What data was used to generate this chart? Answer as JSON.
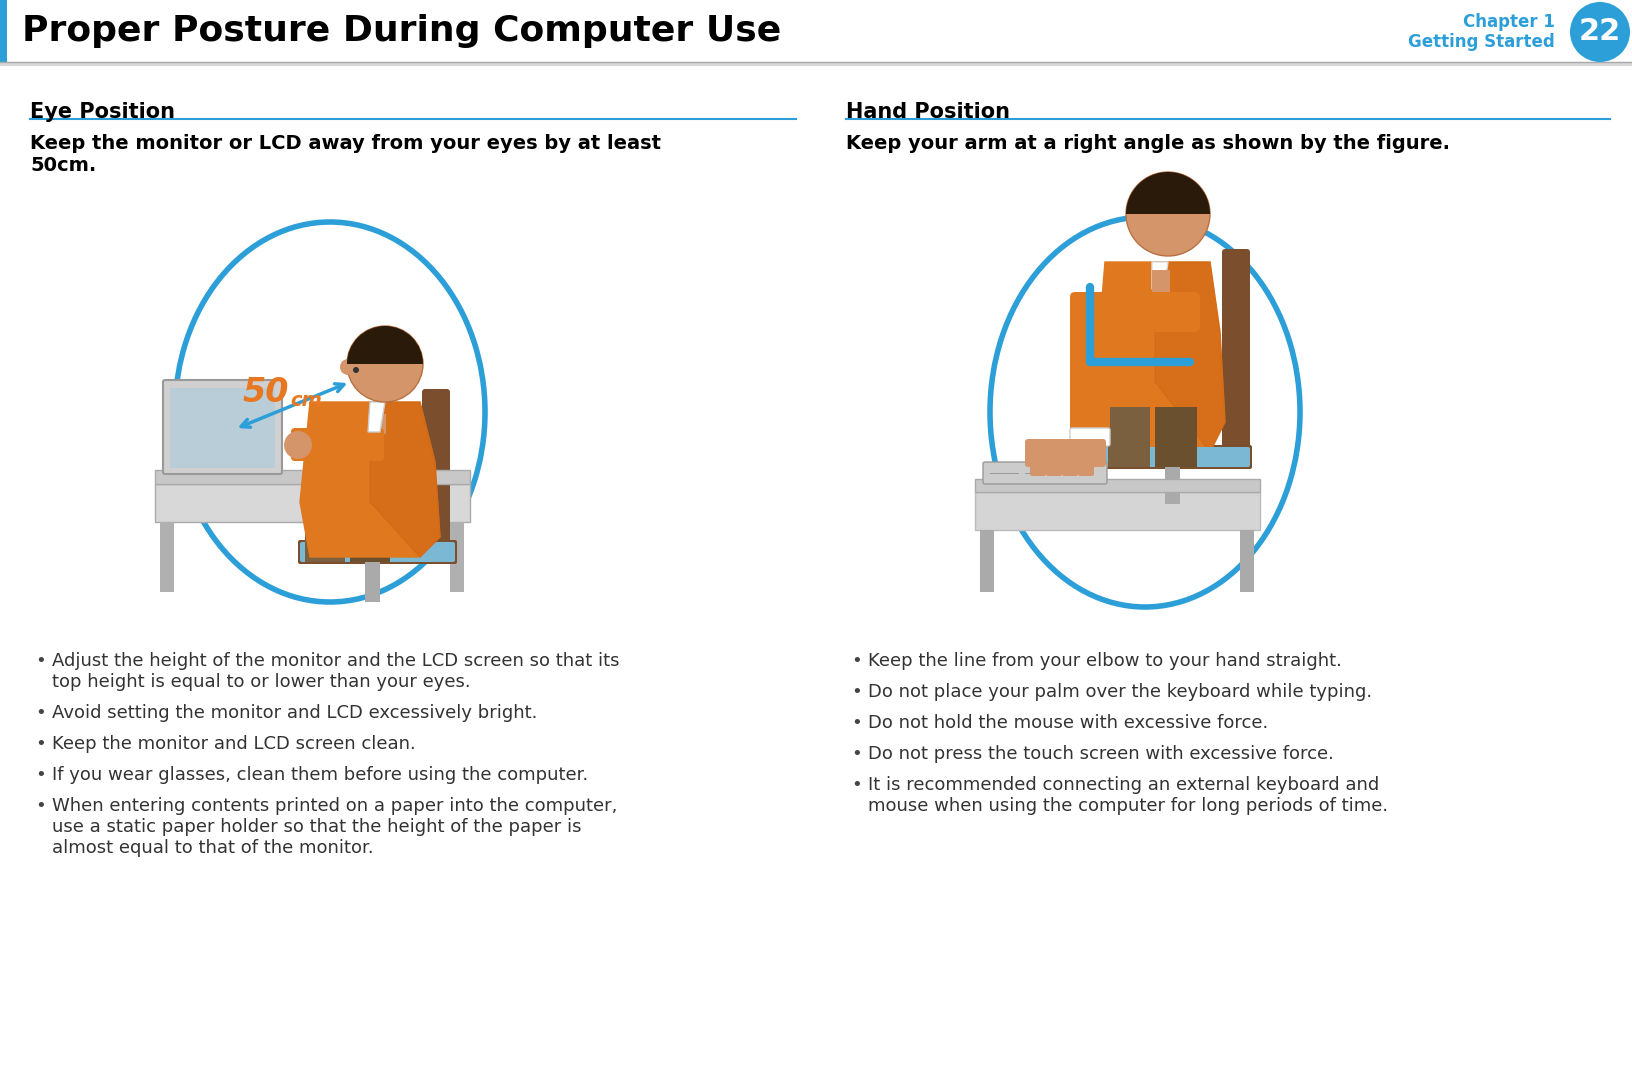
{
  "bg_color": "#ffffff",
  "header_title": "Proper Posture During Computer Use",
  "header_title_size": 26,
  "header_chapter_text": "Chapter 1",
  "header_getting_started": "Getting Started",
  "header_number": "22",
  "header_circle_color": "#2d9fd8",
  "header_text_color": "#2d9fd8",
  "left_section_title": "Eye Position",
  "right_section_title": "Hand Position",
  "left_bold_text1": "Keep the monitor or LCD away from your eyes by at least",
  "left_bold_text2": "50cm.",
  "right_bold_text": "Keep your arm at a right angle as shown by the figure.",
  "left_bullets": [
    "Adjust the height of the monitor and the LCD screen so that its\ntop height is equal to or lower than your eyes.",
    "Avoid setting the monitor and LCD excessively bright.",
    "Keep the monitor and LCD screen clean.",
    "If you wear glasses, clean them before using the computer.",
    "When entering contents printed on a paper into the computer,\nuse a static paper holder so that the height of the paper is\nalmost equal to that of the monitor."
  ],
  "right_bullets": [
    "Keep the line from your elbow to your hand straight.",
    "Do not place your palm over the keyboard while typing.",
    "Do not hold the mouse with excessive force.",
    "Do not press the touch screen with excessive force.",
    "It is recommended connecting an external keyboard and\nmouse when using the computer for long periods of time."
  ],
  "accent_color": "#2d9fd8",
  "divider_color": "#c0c0c0",
  "section_line_color": "#2d9fd8",
  "bullet_char": "•",
  "orange_color": "#E87722",
  "header_bar_color": "#2d9fd8",
  "title_color": "#000000",
  "bullet_size": 13,
  "section_title_size": 15,
  "bold_text_size": 14
}
